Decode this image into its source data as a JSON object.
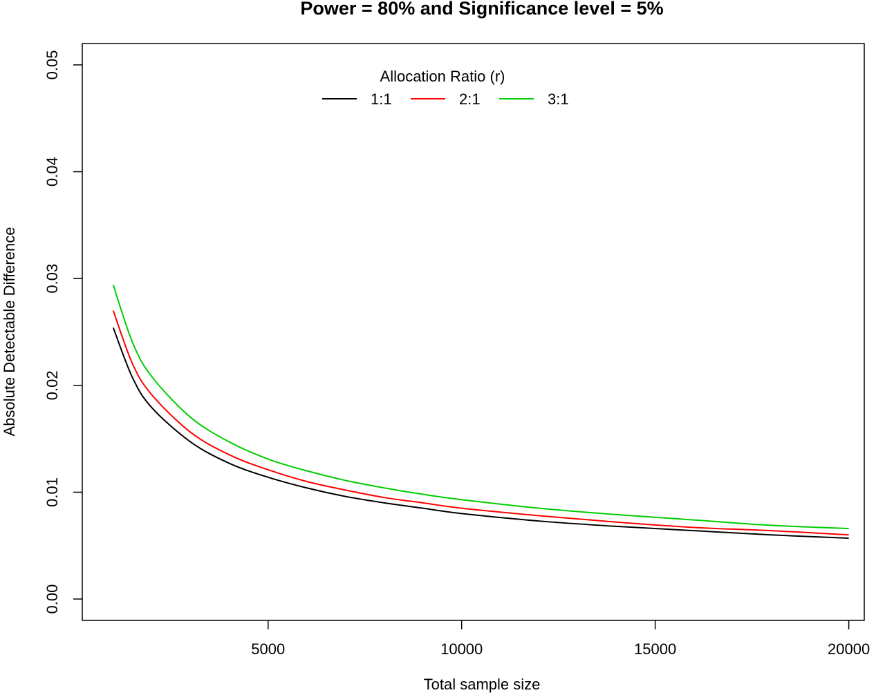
{
  "chart_data": {
    "type": "line",
    "title": "Power = 80% and Significance level = 5%",
    "xlabel": "Total sample size",
    "ylabel": "Absolute Detectable Difference",
    "xlim": [
      200,
      20400
    ],
    "ylim": [
      -0.002,
      0.052
    ],
    "x_ticks": [
      5000,
      10000,
      15000,
      20000
    ],
    "x_tick_labels": [
      "5000",
      "10000",
      "15000",
      "20000"
    ],
    "y_ticks": [
      0.0,
      0.01,
      0.02,
      0.03,
      0.04,
      0.05
    ],
    "y_tick_labels": [
      "0.00",
      "0.01",
      "0.02",
      "0.03",
      "0.04",
      "0.05"
    ],
    "grid": false,
    "legend": {
      "title": "Allocation Ratio (r)",
      "position": "top-center"
    },
    "series": [
      {
        "name": "1:1",
        "color": "#000000",
        "x": [
          1000,
          1500,
          2000,
          3000,
          4000,
          5000,
          6000,
          7000,
          8000,
          9000,
          10000,
          12000,
          14000,
          16000,
          18000,
          20000
        ],
        "y": [
          0.0254,
          0.0207,
          0.0179,
          0.0147,
          0.0127,
          0.0114,
          0.0104,
          0.0096,
          0.009,
          0.0085,
          0.008,
          0.0073,
          0.0068,
          0.0064,
          0.006,
          0.0057
        ]
      },
      {
        "name": "2:1",
        "color": "#ff0000",
        "x": [
          1000,
          1500,
          2000,
          3000,
          4000,
          5000,
          6000,
          7000,
          8000,
          9000,
          10000,
          12000,
          14000,
          16000,
          18000,
          20000
        ],
        "y": [
          0.027,
          0.022,
          0.0191,
          0.0156,
          0.0135,
          0.0121,
          0.011,
          0.0102,
          0.0095,
          0.009,
          0.0085,
          0.0078,
          0.0072,
          0.0067,
          0.0064,
          0.006
        ]
      },
      {
        "name": "3:1",
        "color": "#00cd00",
        "x": [
          1000,
          1500,
          2000,
          3000,
          4000,
          5000,
          6000,
          7000,
          8000,
          9000,
          10000,
          12000,
          14000,
          16000,
          18000,
          20000
        ],
        "y": [
          0.0294,
          0.024,
          0.0208,
          0.017,
          0.0147,
          0.0131,
          0.012,
          0.0111,
          0.0104,
          0.0098,
          0.0093,
          0.0085,
          0.0079,
          0.0074,
          0.0069,
          0.0066
        ]
      }
    ]
  }
}
